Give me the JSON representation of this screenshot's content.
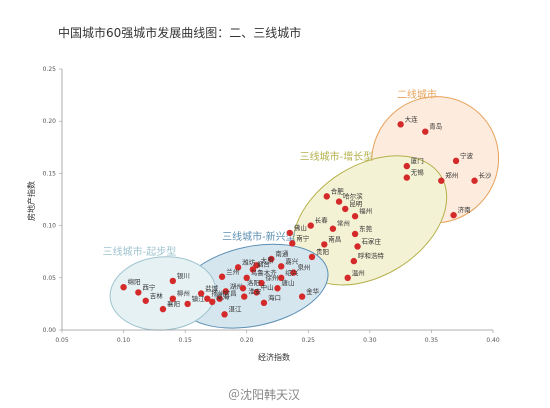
{
  "chart_data": {
    "type": "scatter",
    "title": "中国城市60强城市发展曲线图：二、三线城市",
    "xlabel": "经济指数",
    "ylabel": "房地产指数",
    "xlim": [
      0.05,
      0.4
    ],
    "ylim": [
      0.0,
      0.25
    ],
    "xticks": [
      "0.05",
      "0.10",
      "0.15",
      "0.20",
      "0.25",
      "0.30",
      "0.35",
      "0.40"
    ],
    "yticks": [
      "0.00",
      "0.05",
      "0.10",
      "0.15",
      "0.20",
      "0.25"
    ],
    "grid": false,
    "colors": {
      "point": "#d42a2a",
      "tier2": "#e8a25a",
      "growth": "#b4b04c",
      "emerging": "#5c8fb3",
      "start": "#9ec3cf"
    },
    "groups": [
      {
        "label": "二线城市",
        "color": "#e8a25a",
        "fill": "#fdebdd",
        "center": [
          0.353,
          0.163
        ],
        "rx": 0.052,
        "ry": 0.06,
        "rot": -40
      },
      {
        "label": "三线城市-增长型",
        "color": "#b4b04c",
        "fill": "#f4f2d4",
        "center": [
          0.3,
          0.105
        ],
        "rx": 0.068,
        "ry": 0.053,
        "rot": -32
      },
      {
        "label": "三线城市-新兴型",
        "color": "#5c8fb3",
        "fill": "#d6e6ef",
        "center": [
          0.205,
          0.042
        ],
        "rx": 0.062,
        "ry": 0.038,
        "rot": -12
      },
      {
        "label": "三线城市-起步型",
        "color": "#9ec3cf",
        "fill": "#e6f1f4",
        "center": [
          0.132,
          0.035
        ],
        "rx": 0.043,
        "ry": 0.035,
        "rot": -5
      }
    ],
    "points": [
      {
        "name": "大连",
        "x": 0.325,
        "y": 0.197
      },
      {
        "name": "青岛",
        "x": 0.345,
        "y": 0.19
      },
      {
        "name": "厦门",
        "x": 0.33,
        "y": 0.157
      },
      {
        "name": "宁波",
        "x": 0.37,
        "y": 0.162
      },
      {
        "name": "无锡",
        "x": 0.33,
        "y": 0.146
      },
      {
        "name": "郑州",
        "x": 0.358,
        "y": 0.143
      },
      {
        "name": "长沙",
        "x": 0.385,
        "y": 0.143
      },
      {
        "name": "济南",
        "x": 0.368,
        "y": 0.11
      },
      {
        "name": "合肥",
        "x": 0.265,
        "y": 0.128
      },
      {
        "name": "哈尔滨",
        "x": 0.275,
        "y": 0.123
      },
      {
        "name": "昆明",
        "x": 0.28,
        "y": 0.116
      },
      {
        "name": "福州",
        "x": 0.288,
        "y": 0.109
      },
      {
        "name": "长春",
        "x": 0.252,
        "y": 0.1
      },
      {
        "name": "常州",
        "x": 0.27,
        "y": 0.097
      },
      {
        "name": "东莞",
        "x": 0.288,
        "y": 0.092
      },
      {
        "name": "佛山",
        "x": 0.235,
        "y": 0.093
      },
      {
        "name": "南宁",
        "x": 0.237,
        "y": 0.083
      },
      {
        "name": "南昌",
        "x": 0.263,
        "y": 0.082
      },
      {
        "name": "石家庄",
        "x": 0.29,
        "y": 0.08
      },
      {
        "name": "贵阳",
        "x": 0.253,
        "y": 0.07
      },
      {
        "name": "呼和浩特",
        "x": 0.287,
        "y": 0.066
      },
      {
        "name": "温州",
        "x": 0.282,
        "y": 0.05
      },
      {
        "name": "南通",
        "x": 0.22,
        "y": 0.068
      },
      {
        "name": "太原",
        "x": 0.208,
        "y": 0.062
      },
      {
        "name": "嘉兴",
        "x": 0.228,
        "y": 0.061
      },
      {
        "name": "潍坊",
        "x": 0.193,
        "y": 0.06
      },
      {
        "name": "烟台",
        "x": 0.205,
        "y": 0.058
      },
      {
        "name": "泉州",
        "x": 0.238,
        "y": 0.055
      },
      {
        "name": "兰州",
        "x": 0.18,
        "y": 0.051
      },
      {
        "name": "乌鲁木齐",
        "x": 0.2,
        "y": 0.05
      },
      {
        "name": "绍兴",
        "x": 0.228,
        "y": 0.05
      },
      {
        "name": "徐州",
        "x": 0.212,
        "y": 0.045
      },
      {
        "name": "唐山",
        "x": 0.225,
        "y": 0.04
      },
      {
        "name": "湖州",
        "x": 0.183,
        "y": 0.037
      },
      {
        "name": "洛阳",
        "x": 0.197,
        "y": 0.04
      },
      {
        "name": "中山",
        "x": 0.208,
        "y": 0.036
      },
      {
        "name": "盐城",
        "x": 0.163,
        "y": 0.035
      },
      {
        "name": "宜昌",
        "x": 0.178,
        "y": 0.03
      },
      {
        "name": "淮安",
        "x": 0.198,
        "y": 0.032
      },
      {
        "name": "海口",
        "x": 0.214,
        "y": 0.026
      },
      {
        "name": "金华",
        "x": 0.245,
        "y": 0.032
      },
      {
        "name": "镇江",
        "x": 0.152,
        "y": 0.025
      },
      {
        "name": "扬州",
        "x": 0.168,
        "y": 0.03
      },
      {
        "name": "湛江",
        "x": 0.182,
        "y": 0.015
      },
      {
        "name": "银川",
        "x": 0.14,
        "y": 0.047
      },
      {
        "name": "绵阳",
        "x": 0.1,
        "y": 0.041
      },
      {
        "name": "西宁",
        "x": 0.112,
        "y": 0.036
      },
      {
        "name": "吉林",
        "x": 0.118,
        "y": 0.028
      },
      {
        "name": "襄阳",
        "x": 0.132,
        "y": 0.02
      },
      {
        "name": "威海",
        "x": 0.172,
        "y": 0.027
      },
      {
        "name": "柳州",
        "x": 0.14,
        "y": 0.03
      }
    ]
  },
  "footer": {
    "watermark": "＠沈阳韩天汉"
  }
}
